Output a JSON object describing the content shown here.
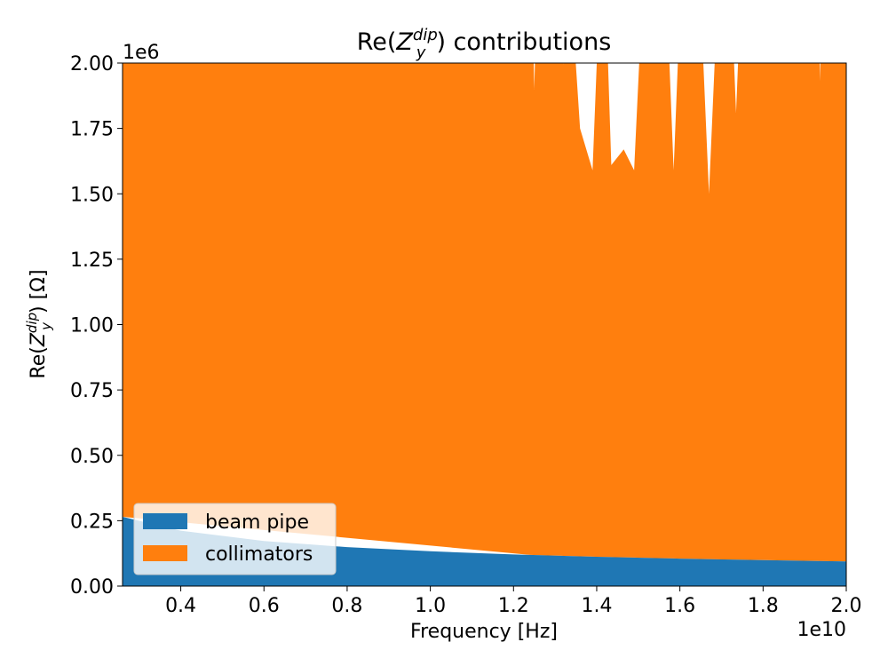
{
  "chart_data": {
    "type": "area",
    "stacked": true,
    "title_prefix": "Re(",
    "title_base": "Z",
    "title_sup": "dip",
    "title_sub": "y",
    "title_suffix": ") contributions",
    "xlabel": "Frequency [Hz]",
    "ylabel_prefix": "Re(",
    "ylabel_base": "Z",
    "ylabel_sup": "dip",
    "ylabel_sub": "y",
    "ylabel_suffix": ") [Ω]",
    "x_offset_text": "1e10",
    "y_offset_text": "1e6",
    "xlim": [
      0.26,
      2.0
    ],
    "ylim": [
      0,
      2.0
    ],
    "x_ticks": [
      0.4,
      0.6,
      0.8,
      1.0,
      1.2,
      1.4,
      1.6,
      1.8,
      2.0
    ],
    "x_tick_labels": [
      "0.4",
      "0.6",
      "0.8",
      "1.0",
      "1.2",
      "1.4",
      "1.6",
      "1.8",
      "2.0"
    ],
    "y_ticks": [
      0,
      0.25,
      0.5,
      0.75,
      1.0,
      1.25,
      1.5,
      1.75,
      2.0
    ],
    "y_tick_labels": [
      "0.00",
      "0.25",
      "0.50",
      "0.75",
      "1.00",
      "1.25",
      "1.50",
      "1.75",
      "2.00"
    ],
    "grid": false,
    "legend_position": "lower-left",
    "colors": {
      "beam_pipe": "#1f77b4",
      "collimators": "#ff7f0e"
    },
    "series": [
      {
        "name": "beam pipe",
        "x": [
          0.26,
          0.4,
          0.6,
          0.8,
          1.0,
          1.2,
          1.4,
          1.6,
          1.8,
          2.0
        ],
        "values": [
          0.265,
          0.212,
          0.172,
          0.149,
          0.133,
          0.121,
          0.112,
          0.105,
          0.099,
          0.094
        ]
      },
      {
        "name": "collimators",
        "x": [
          0.26,
          1.24,
          1.25,
          1.26,
          1.315,
          1.32,
          1.325,
          1.36,
          1.39,
          1.415,
          1.435,
          1.465,
          1.49,
          1.52,
          1.56,
          1.585,
          1.61,
          1.64,
          1.67,
          1.7,
          1.715,
          1.735,
          1.755,
          1.93,
          1.937,
          1.945,
          2.0
        ],
        "totals": [
          2.6,
          2.6,
          1.9,
          2.6,
          2.6,
          1.99,
          2.6,
          1.75,
          1.59,
          2.6,
          1.61,
          1.67,
          1.59,
          2.6,
          2.6,
          1.59,
          2.6,
          2.6,
          1.5,
          2.6,
          2.6,
          1.81,
          2.6,
          2.6,
          1.93,
          2.6,
          2.6
        ]
      }
    ]
  }
}
